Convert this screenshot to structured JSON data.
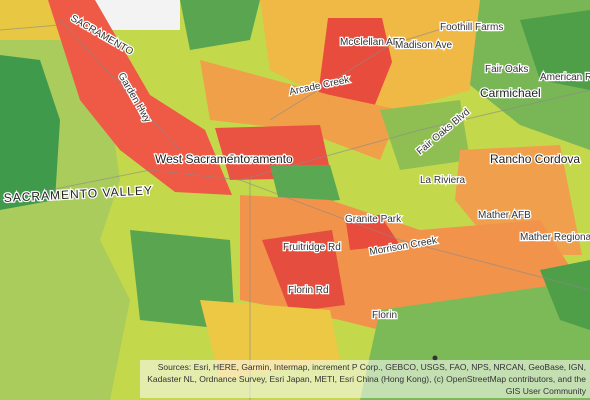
{
  "labels": [
    "SACRAMENTO",
    "Garden Hwy",
    "Sacramento",
    "West Sacramento",
    "SACRAMENTO VALLEY",
    "McClellan AFB",
    "Madison Ave",
    "Foothill Farms",
    "Fair Oaks",
    "Carmichael",
    "Arcade Creek",
    "Rancho Cordova",
    "La Riviera",
    "Mather AFB",
    "Mather Regional Park",
    "Granite Park",
    "Fruitridge Rd",
    "Florin Rd",
    "Florin",
    "Morrison Creek",
    "Fair Oaks Blvd",
    "American River Parkway"
  ],
  "attribution": "Sources: Esri, HERE, Garmin, Intermap, increment P Corp., GEBCO, USGS, FAO, NPS, NRCAN, GeoBase, IGN, Kadaster NL, Ordnance Survey, Esri Japan, METI, Esri China (Hong Kong), (c) OpenStreetMap contributors, and the GIS User Community"
}
